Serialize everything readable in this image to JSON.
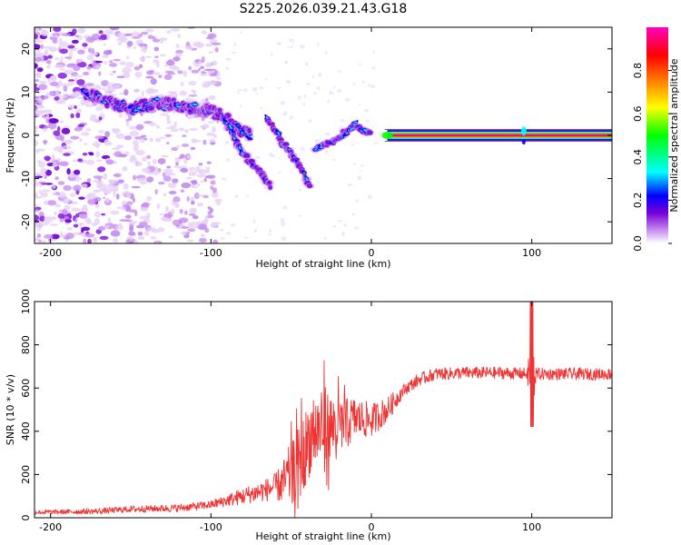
{
  "title": "S225.2026.039.21.43.G18",
  "chart_data": [
    {
      "type": "heatmap",
      "xlabel": "Height of straight line (km)",
      "ylabel": "Frequency (Hz)",
      "xlim": [
        -210,
        150
      ],
      "ylim": [
        -25,
        25
      ],
      "xticks": [
        -200,
        -100,
        0,
        100
      ],
      "yticks": [
        -20,
        -10,
        0,
        10,
        20
      ],
      "colorbar": {
        "label": "Normalized spectral amplitude",
        "range": [
          0,
          1
        ],
        "ticks": [
          "0.0",
          "0.2",
          "0.4",
          "0.6",
          "0.8"
        ],
        "tick_values": [
          0.0,
          0.2,
          0.4,
          0.6,
          0.8
        ],
        "colors": [
          "#ffffff",
          "#c890f0",
          "#7800d8",
          "#0000ff",
          "#00ffff",
          "#00ff00",
          "#ffff00",
          "#ff8000",
          "#ff0000",
          "#ff00c0"
        ]
      },
      "features": {
        "noise_region_x": [
          -210,
          -95
        ],
        "main_ridge": [
          [
            -180,
            10
          ],
          [
            -165,
            8
          ],
          [
            -150,
            6
          ],
          [
            -135,
            7.5
          ],
          [
            -120,
            7
          ],
          [
            -105,
            6
          ],
          [
            -95,
            5
          ],
          [
            -85,
            2
          ],
          [
            -75,
            0
          ]
        ],
        "lower_branch": [
          [
            -92,
            4
          ],
          [
            -85,
            -1
          ],
          [
            -78,
            -5
          ],
          [
            -68,
            -9
          ],
          [
            -62,
            -12
          ]
        ],
        "upper_branch": [
          [
            -65,
            4
          ],
          [
            -55,
            -2
          ],
          [
            -45,
            -7
          ],
          [
            -38,
            -12
          ]
        ],
        "converge_branch": [
          [
            -35,
            -3
          ],
          [
            -25,
            -1.5
          ],
          [
            -15,
            1
          ],
          [
            -10,
            2.5
          ],
          [
            -5,
            1
          ],
          [
            0,
            0.5
          ]
        ],
        "steady_line_x": [
          10,
          150
        ],
        "steady_line_freq": 0
      }
    },
    {
      "type": "line",
      "xlabel": "Height of straight line (km)",
      "ylabel": "SNR (10 * v/v)",
      "xlim": [
        -210,
        150
      ],
      "ylim": [
        0,
        1000
      ],
      "xticks": [
        -200,
        -100,
        0,
        100
      ],
      "yticks": [
        0,
        200,
        400,
        600,
        800,
        1000
      ],
      "series": [
        {
          "name": "SNR",
          "color": "#ee3333",
          "trend": [
            [
              -210,
              25
            ],
            [
              -170,
              30
            ],
            [
              -150,
              40
            ],
            [
              -120,
              45
            ],
            [
              -100,
              60
            ],
            [
              -80,
              100
            ],
            [
              -65,
              130
            ],
            [
              -55,
              160
            ],
            [
              -45,
              250
            ],
            [
              -38,
              380
            ],
            [
              -30,
              420
            ],
            [
              -20,
              420
            ],
            [
              -10,
              460
            ],
            [
              0,
              450
            ],
            [
              10,
              500
            ],
            [
              20,
              590
            ],
            [
              30,
              640
            ],
            [
              40,
              665
            ],
            [
              60,
              670
            ],
            [
              80,
              670
            ],
            [
              100,
              665
            ],
            [
              120,
              665
            ],
            [
              150,
              665
            ]
          ],
          "noise_amplitude": [
            [
              -210,
              10
            ],
            [
              -100,
              20
            ],
            [
              -60,
              60
            ],
            [
              -45,
              200
            ],
            [
              -30,
              200
            ],
            [
              -10,
              100
            ],
            [
              10,
              60
            ],
            [
              20,
              30
            ],
            [
              150,
              28
            ]
          ],
          "spike": {
            "x": 100,
            "max": 1000,
            "min": 420
          }
        }
      ]
    }
  ]
}
